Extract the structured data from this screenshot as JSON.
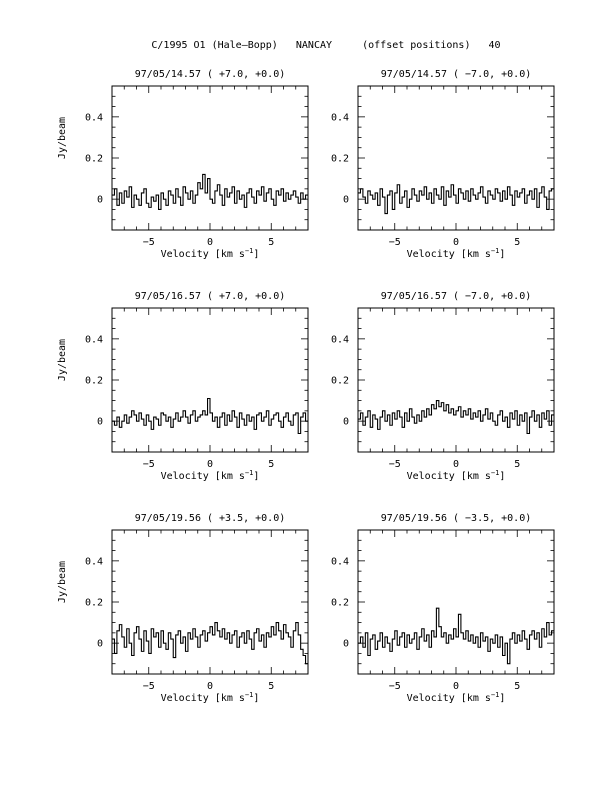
{
  "figure_title": "C/1995 O1 (Hale–Bopp)   NANCAY     (offset positions)   40",
  "xlabel_main": "Velocity [km s",
  "xlabel_sup": "−1",
  "xlabel_end": "]",
  "ylabel": "Jy/beam",
  "chart_data": [
    {
      "type": "line",
      "title": "97/05/14.57  ( +7.0, +0.0)",
      "xlabel": "Velocity [km s-1]",
      "ylabel": "Jy/beam",
      "xlim": [
        -8,
        8
      ],
      "ylim": [
        -0.15,
        0.55
      ],
      "xticks": [
        -5,
        0,
        5
      ],
      "yticks": [
        0,
        0.2,
        0.4
      ],
      "series": [
        {
          "x_start": -8.0,
          "x_step": 0.2,
          "values": [
            0.02,
            0.05,
            -0.03,
            0.03,
            -0.02,
            0.04,
            0.01,
            0.06,
            -0.04,
            0.02,
            0.0,
            -0.03,
            0.03,
            0.05,
            -0.02,
            -0.04,
            0.01,
            -0.01,
            0.02,
            -0.05,
            0.03,
            0.0,
            -0.03,
            0.04,
            0.02,
            -0.02,
            0.05,
            0.01,
            -0.03,
            0.06,
            0.03,
            0.0,
            0.04,
            -0.02,
            0.02,
            0.08,
            0.05,
            0.12,
            0.03,
            0.1,
            0.0,
            -0.02,
            0.04,
            0.07,
            0.02,
            -0.03,
            0.05,
            0.01,
            0.03,
            0.06,
            -0.02,
            0.04,
            0.0,
            0.02,
            -0.04,
            0.03,
            0.05,
            0.01,
            -0.02,
            0.04,
            0.02,
            0.06,
            -0.01,
            0.03,
            0.05,
            0.0,
            -0.03,
            0.04,
            0.02,
            0.05,
            -0.01,
            0.03,
            0.0,
            0.02,
            0.04,
            0.01,
            -0.02,
            0.03,
            0.0,
            0.02
          ]
        }
      ]
    },
    {
      "type": "line",
      "title": "97/05/14.57  ( −7.0, +0.0)",
      "xlabel": "Velocity [km s-1]",
      "ylabel": "Jy/beam",
      "xlim": [
        -8,
        8
      ],
      "ylim": [
        -0.15,
        0.55
      ],
      "xticks": [
        -5,
        0,
        5
      ],
      "yticks": [
        0,
        0.2,
        0.4
      ],
      "series": [
        {
          "x_start": -8.0,
          "x_step": 0.2,
          "values": [
            0.03,
            0.05,
            0.01,
            -0.02,
            0.04,
            0.02,
            0.0,
            0.03,
            -0.03,
            0.05,
            0.01,
            -0.07,
            0.02,
            0.04,
            -0.05,
            0.03,
            0.07,
            -0.02,
            0.01,
            0.04,
            -0.04,
            0.0,
            0.05,
            0.02,
            -0.01,
            0.04,
            0.02,
            0.06,
            0.0,
            0.03,
            -0.02,
            0.05,
            0.02,
            0.0,
            0.06,
            -0.03,
            0.04,
            0.01,
            0.07,
            0.02,
            -0.02,
            0.05,
            0.03,
            0.0,
            0.04,
            -0.01,
            0.05,
            0.02,
            0.0,
            0.03,
            0.06,
            0.01,
            -0.02,
            0.04,
            0.02,
            0.0,
            0.05,
            0.03,
            -0.01,
            0.04,
            0.0,
            0.06,
            0.02,
            -0.03,
            0.04,
            0.01,
            0.03,
            0.05,
            -0.02,
            0.02,
            0.04,
            0.0,
            0.05,
            -0.04,
            0.03,
            0.06,
            0.01,
            -0.05,
            0.04,
            0.05
          ]
        }
      ]
    },
    {
      "type": "line",
      "title": "97/05/16.57  ( +7.0, +0.0)",
      "xlabel": "Velocity [km s-1]",
      "ylabel": "Jy/beam",
      "xlim": [
        -8,
        8
      ],
      "ylim": [
        -0.15,
        0.55
      ],
      "xticks": [
        -5,
        0,
        5
      ],
      "yticks": [
        0,
        0.2,
        0.4
      ],
      "series": [
        {
          "x_start": -8.0,
          "x_step": 0.2,
          "values": [
            0.0,
            -0.02,
            0.02,
            -0.03,
            0.0,
            0.03,
            -0.01,
            0.02,
            0.05,
            0.03,
            0.0,
            0.04,
            0.01,
            -0.02,
            0.03,
            0.0,
            -0.04,
            0.02,
            0.01,
            -0.02,
            0.04,
            0.03,
            0.0,
            0.02,
            -0.03,
            0.01,
            0.04,
            0.0,
            0.02,
            0.05,
            0.02,
            -0.01,
            0.03,
            0.05,
            0.0,
            0.02,
            0.03,
            0.05,
            0.03,
            0.11,
            0.04,
            0.0,
            0.02,
            -0.03,
            0.02,
            0.04,
            -0.02,
            0.03,
            0.0,
            0.05,
            0.02,
            -0.03,
            0.04,
            0.01,
            -0.02,
            0.03,
            0.0,
            0.02,
            -0.04,
            0.03,
            0.04,
            0.0,
            0.02,
            0.05,
            -0.02,
            0.01,
            0.03,
            0.04,
            0.0,
            -0.03,
            0.02,
            0.04,
            0.0,
            -0.02,
            0.03,
            0.04,
            -0.06,
            0.02,
            0.04,
            0.0
          ]
        }
      ]
    },
    {
      "type": "line",
      "title": "97/05/16.57  ( −7.0, +0.0)",
      "xlabel": "Velocity [km s-1]",
      "ylabel": "Jy/beam",
      "xlim": [
        -8,
        8
      ],
      "ylim": [
        -0.15,
        0.55
      ],
      "xticks": [
        -5,
        0,
        5
      ],
      "yticks": [
        0,
        0.2,
        0.4
      ],
      "series": [
        {
          "x_start": -8.0,
          "x_step": 0.2,
          "values": [
            0.01,
            0.04,
            -0.02,
            0.02,
            0.05,
            -0.03,
            0.03,
            0.01,
            -0.04,
            0.02,
            0.05,
            0.0,
            0.03,
            -0.02,
            0.04,
            0.01,
            0.05,
            0.02,
            -0.03,
            0.04,
            0.0,
            0.06,
            0.02,
            -0.01,
            0.03,
            0.0,
            0.05,
            0.02,
            0.06,
            0.03,
            0.08,
            0.06,
            0.1,
            0.07,
            0.09,
            0.05,
            0.08,
            0.04,
            0.06,
            0.03,
            0.05,
            0.07,
            0.02,
            0.05,
            0.03,
            0.06,
            0.01,
            0.04,
            0.02,
            0.05,
            0.0,
            0.03,
            0.06,
            0.01,
            0.04,
            0.0,
            -0.02,
            0.03,
            0.05,
            0.0,
            0.02,
            -0.03,
            0.04,
            0.01,
            0.05,
            -0.02,
            0.03,
            0.0,
            0.04,
            -0.06,
            0.02,
            0.05,
            0.0,
            0.03,
            -0.03,
            0.04,
            0.01,
            0.05,
            -0.02,
            0.03
          ]
        }
      ]
    },
    {
      "type": "line",
      "title": "97/05/19.56  ( +3.5, +0.0)",
      "xlabel": "Velocity [km s-1]",
      "ylabel": "Jy/beam",
      "xlim": [
        -8,
        8
      ],
      "ylim": [
        -0.15,
        0.55
      ],
      "xticks": [
        -5,
        0,
        5
      ],
      "yticks": [
        0,
        0.2,
        0.4
      ],
      "series": [
        {
          "x_start": -8.0,
          "x_step": 0.2,
          "values": [
            0.02,
            -0.05,
            0.06,
            0.09,
            0.03,
            -0.02,
            0.07,
            0.0,
            -0.06,
            0.05,
            0.08,
            0.02,
            -0.04,
            0.06,
            0.01,
            -0.05,
            0.07,
            0.03,
            0.05,
            -0.02,
            0.06,
            0.0,
            -0.03,
            0.05,
            0.02,
            -0.07,
            0.04,
            0.06,
            0.0,
            0.03,
            -0.04,
            0.05,
            0.02,
            0.07,
            0.03,
            -0.02,
            0.04,
            0.06,
            0.01,
            0.05,
            0.08,
            0.04,
            0.1,
            0.06,
            0.03,
            0.07,
            0.02,
            0.05,
            0.0,
            0.04,
            0.06,
            -0.02,
            0.03,
            0.05,
            0.0,
            0.06,
            0.02,
            -0.03,
            0.05,
            0.07,
            0.01,
            0.04,
            -0.02,
            0.05,
            0.03,
            0.08,
            0.04,
            0.1,
            0.06,
            0.02,
            0.09,
            0.05,
            0.03,
            -0.02,
            0.06,
            0.1,
            0.04,
            -0.03,
            -0.06,
            -0.1
          ]
        }
      ]
    },
    {
      "type": "line",
      "title": "97/05/19.56  ( −3.5, +0.0)",
      "xlabel": "Velocity [km s-1]",
      "ylabel": "Jy/beam",
      "xlim": [
        -8,
        8
      ],
      "ylim": [
        -0.15,
        0.55
      ],
      "xticks": [
        -5,
        0,
        5
      ],
      "yticks": [
        0,
        0.2,
        0.4
      ],
      "series": [
        {
          "x_start": -8.0,
          "x_step": 0.2,
          "values": [
            0.0,
            0.03,
            -0.02,
            0.05,
            -0.06,
            0.02,
            0.04,
            -0.03,
            0.01,
            0.05,
            -0.02,
            0.03,
            0.0,
            -0.04,
            0.02,
            0.06,
            -0.01,
            0.03,
            0.05,
            -0.02,
            0.04,
            0.0,
            0.02,
            0.05,
            -0.03,
            0.03,
            0.07,
            0.01,
            0.04,
            -0.02,
            0.06,
            0.03,
            0.17,
            0.08,
            0.03,
            0.05,
            0.0,
            0.04,
            0.02,
            0.07,
            0.03,
            0.14,
            0.05,
            0.02,
            0.06,
            0.01,
            0.04,
            0.0,
            0.03,
            -0.02,
            0.05,
            0.01,
            0.03,
            -0.04,
            0.02,
            0.0,
            0.04,
            -0.02,
            0.03,
            -0.06,
            0.0,
            -0.1,
            0.02,
            0.05,
            0.0,
            0.04,
            0.01,
            0.06,
            0.02,
            -0.03,
            0.04,
            0.06,
            0.02,
            0.05,
            -0.02,
            0.07,
            0.03,
            0.1,
            0.04,
            0.06
          ]
        }
      ]
    }
  ]
}
